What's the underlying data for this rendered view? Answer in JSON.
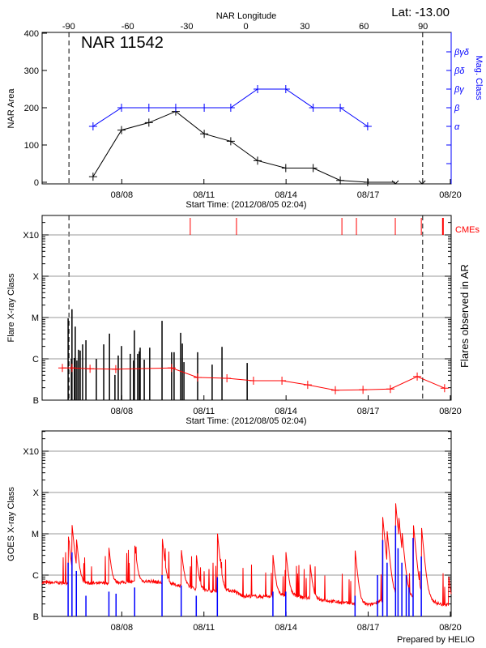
{
  "header": {
    "lat_label": "Lat: -13.00",
    "region_title": "NAR 11542",
    "credit": "Prepared by HELIO"
  },
  "colors": {
    "area": "#000000",
    "mag": "#0000ff",
    "flare_count": "#ff0000",
    "cme": "#ff0000",
    "goes": "#ff0000",
    "goes_events": "#0000ff",
    "grid": "#999999"
  },
  "chart_data": [
    {
      "type": "line",
      "title": "NAR 11542",
      "xlabel": "Start Time: (2012/08/05 02:04)",
      "x_top_label": "NAR Longitude",
      "ylabel": "NAR Area",
      "y2label": "Mag. Class",
      "ylim": [
        0,
        400
      ],
      "yticks": [
        "0",
        "100",
        "200",
        "300",
        "400"
      ],
      "xlim_days": [
        0,
        14.94
      ],
      "date_ticks": [
        {
          "label": "08/08",
          "day": 2.91
        },
        {
          "label": "08/11",
          "day": 5.91
        },
        {
          "label": "08/14",
          "day": 8.91
        },
        {
          "label": "08/17",
          "day": 11.91
        },
        {
          "label": "08/20",
          "day": 14.91
        }
      ],
      "longitude_ticks": [
        {
          "label": "-90",
          "lon": -90
        },
        {
          "label": "-60",
          "lon": -60
        },
        {
          "label": "-30",
          "lon": -30
        },
        {
          "label": "0",
          "lon": 0
        },
        {
          "label": "30",
          "lon": 30
        },
        {
          "label": "60",
          "lon": 60
        },
        {
          "label": "90",
          "lon": 90
        }
      ],
      "limb_days": [
        0.98,
        13.9
      ],
      "series": [
        {
          "name": "NAR Area",
          "days": [
            1.86,
            2.9,
            3.9,
            4.88,
            5.92,
            6.89,
            7.87,
            8.9,
            9.9,
            10.89,
            11.89
          ],
          "values": [
            15,
            140,
            160,
            190,
            130,
            110,
            58,
            38,
            38,
            5,
            0
          ]
        },
        {
          "name": "Mag. Class",
          "days": [
            1.86,
            2.9,
            3.9,
            4.88,
            5.92,
            6.89,
            7.87,
            8.9,
            9.9,
            10.89,
            11.89
          ],
          "values": [
            "α",
            "β",
            "β",
            "β",
            "β",
            "β",
            "βγ",
            "βγ",
            "β",
            "β",
            "α"
          ]
        }
      ],
      "missing_days": [
        12.9,
        13.88
      ],
      "mag_classes": [
        {
          "label": "α",
          "level": 150
        },
        {
          "label": "β",
          "level": 200
        },
        {
          "label": "βγ",
          "level": 250
        },
        {
          "label": "βδ",
          "level": 300
        },
        {
          "label": "βγδ",
          "level": 350
        }
      ]
    },
    {
      "type": "bar",
      "xlabel": "Start Time: (2012/08/05 02:04)",
      "ylabel": "Flare X-ray Class",
      "y2label": "Flares observed in AR",
      "cme_label": "CMEs",
      "class_ticks": [
        {
          "label": "B",
          "level": 0
        },
        {
          "label": "C",
          "level": 1
        },
        {
          "label": "M",
          "level": 2
        },
        {
          "label": "X",
          "level": 3
        },
        {
          "label": "X10",
          "level": 4
        }
      ],
      "flares": [
        [
          0.95,
          1.98
        ],
        [
          1.07,
          1.0
        ],
        [
          1.09,
          2.2
        ],
        [
          1.18,
          1.02
        ],
        [
          1.21,
          1.78
        ],
        [
          1.27,
          0.96
        ],
        [
          1.33,
          1.22
        ],
        [
          1.39,
          1.2
        ],
        [
          1.48,
          1.35
        ],
        [
          1.6,
          1.45
        ],
        [
          1.98,
          1.0
        ],
        [
          2.25,
          1.35
        ],
        [
          2.46,
          1.61
        ],
        [
          2.66,
          0.61
        ],
        [
          2.78,
          1.08
        ],
        [
          2.9,
          1.31
        ],
        [
          3.22,
          1.12
        ],
        [
          3.34,
          0.96
        ],
        [
          3.37,
          1.69
        ],
        [
          3.49,
          1.12
        ],
        [
          3.55,
          1.18
        ],
        [
          3.58,
          1.27
        ],
        [
          3.73,
          0.98
        ],
        [
          3.93,
          1.27
        ],
        [
          4.38,
          1.92
        ],
        [
          4.73,
          1.16
        ],
        [
          4.82,
          1.16
        ],
        [
          5.06,
          1.63
        ],
        [
          5.12,
          1.37
        ],
        [
          5.18,
          0.92
        ],
        [
          5.68,
          1.16
        ],
        [
          6.21,
          0.86
        ],
        [
          6.57,
          1.29
        ],
        [
          7.49,
          0.9
        ]
      ],
      "flare_count_line": [
        [
          0.74,
          0.78
        ],
        [
          1.09,
          0.78
        ],
        [
          1.75,
          0.76
        ],
        [
          2.69,
          0.75
        ],
        [
          4.73,
          0.78
        ],
        [
          5.68,
          0.55
        ],
        [
          6.75,
          0.53
        ],
        [
          7.72,
          0.47
        ],
        [
          8.76,
          0.47
        ],
        [
          9.7,
          0.37
        ],
        [
          10.71,
          0.24
        ],
        [
          11.72,
          0.25
        ],
        [
          12.72,
          0.27
        ],
        [
          13.7,
          0.57
        ],
        [
          14.7,
          0.29
        ]
      ],
      "cme_days": [
        5.41,
        7.1,
        10.95,
        11.48,
        12.9,
        13.85,
        14.64
      ]
    },
    {
      "type": "line",
      "ylabel": "GOES X-ray Class",
      "background": [
        [
          0,
          0.82
        ],
        [
          2,
          0.8
        ],
        [
          4,
          0.85
        ],
        [
          5,
          0.75
        ],
        [
          6,
          0.62
        ],
        [
          7,
          0.62
        ],
        [
          7.3,
          0.5
        ],
        [
          8,
          0.48
        ],
        [
          9,
          0.52
        ],
        [
          10,
          0.42
        ],
        [
          11,
          0.33
        ],
        [
          12,
          0.28
        ],
        [
          12.6,
          0.45
        ],
        [
          13.2,
          0.55
        ],
        [
          13.5,
          0.45
        ],
        [
          14,
          0.45
        ],
        [
          14.5,
          0.3
        ],
        [
          14.94,
          0.28
        ]
      ],
      "peaks": [
        [
          0.95,
          1.98
        ],
        [
          1.09,
          2.2
        ],
        [
          1.25,
          1.8
        ],
        [
          2.44,
          1.6
        ],
        [
          3.38,
          1.7
        ],
        [
          4.38,
          1.93
        ],
        [
          5.08,
          1.6
        ],
        [
          5.63,
          1.45
        ],
        [
          6.4,
          2.02
        ],
        [
          8.43,
          1.45
        ],
        [
          8.9,
          1.55
        ],
        [
          9.79,
          1.2
        ],
        [
          11.43,
          1.6
        ],
        [
          12.44,
          2.4
        ],
        [
          12.6,
          2.0
        ],
        [
          12.91,
          2.75
        ],
        [
          13.02,
          2.3
        ],
        [
          13.14,
          1.9
        ],
        [
          13.55,
          2.3
        ],
        [
          13.85,
          2.2
        ],
        [
          14.84,
          0.95
        ]
      ],
      "events": [
        [
          0.95,
          1.3
        ],
        [
          1.09,
          1.55
        ],
        [
          1.25,
          1.1
        ],
        [
          1.6,
          0.5
        ],
        [
          2.44,
          0.6
        ],
        [
          2.7,
          0.55
        ],
        [
          3.38,
          0.7
        ],
        [
          4.38,
          1.0
        ],
        [
          5.08,
          0.75
        ],
        [
          5.63,
          0.5
        ],
        [
          6.4,
          0.95
        ],
        [
          8.43,
          0.6
        ],
        [
          8.9,
          0.6
        ],
        [
          11.43,
          0.5
        ],
        [
          12.25,
          1.0
        ],
        [
          12.44,
          1.85
        ],
        [
          12.6,
          1.3
        ],
        [
          12.91,
          2.2
        ],
        [
          13.0,
          1.65
        ],
        [
          13.14,
          1.3
        ],
        [
          13.3,
          1.0
        ],
        [
          13.4,
          0.7
        ],
        [
          13.55,
          1.9
        ],
        [
          13.85,
          1.45
        ]
      ]
    }
  ]
}
